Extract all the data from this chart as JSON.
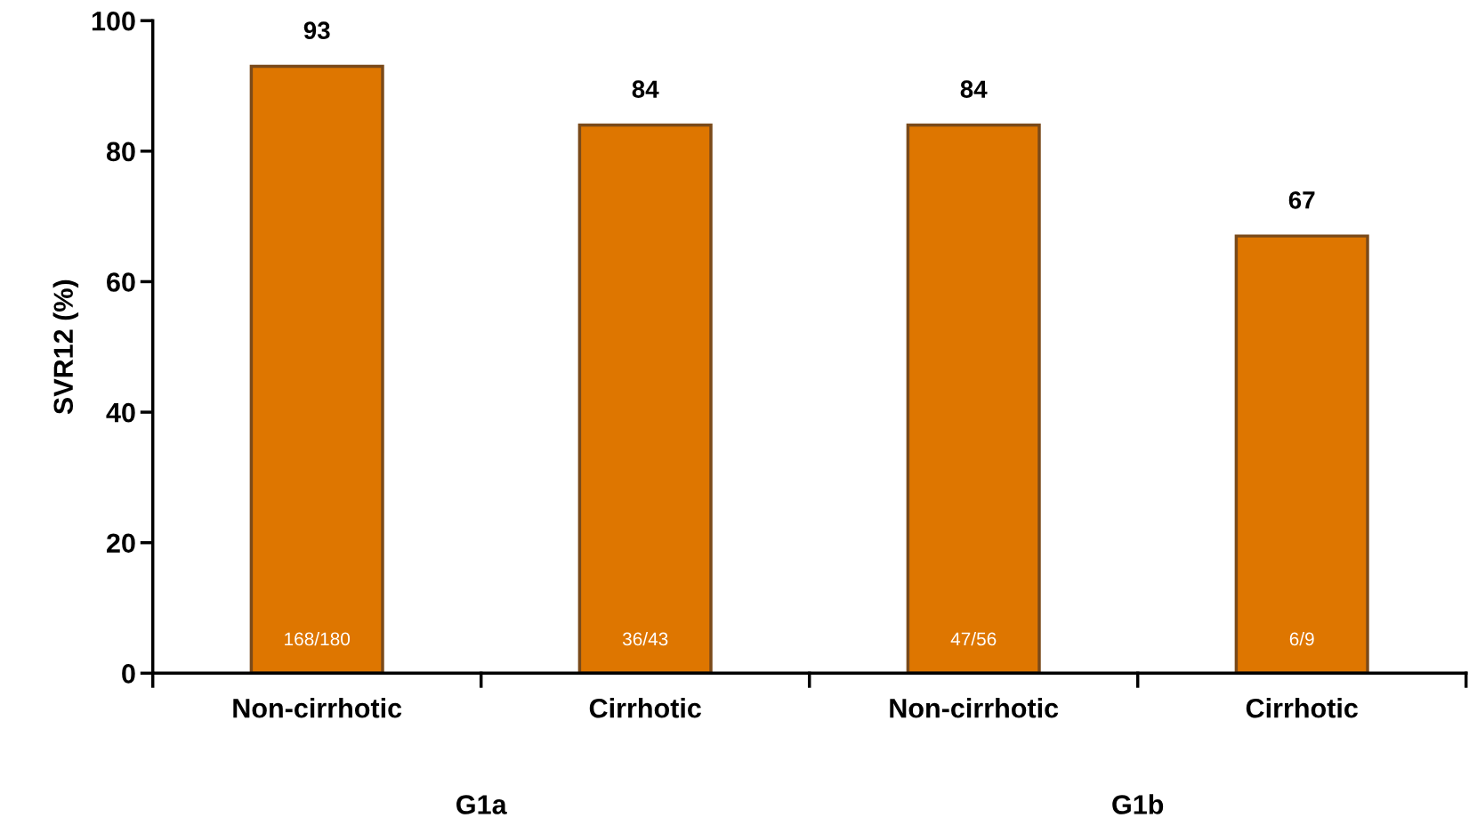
{
  "chart_data": {
    "type": "bar",
    "ylabel": "SVR12 (%)",
    "categories": [
      "Non-cirrhotic",
      "Cirrhotic",
      "Non-cirrhotic",
      "Cirrhotic"
    ],
    "values": [
      93,
      84,
      84,
      67
    ],
    "color": "#de7600",
    "data_labels": true,
    "ylim": [
      0,
      100
    ],
    "yticks": [
      0,
      20,
      40,
      60,
      80,
      100
    ],
    "grid": false,
    "legend": false,
    "annotations": [
      "168/180",
      "36/43",
      "47/56",
      "6/9",
      "G1a",
      "G1b"
    ]
  }
}
